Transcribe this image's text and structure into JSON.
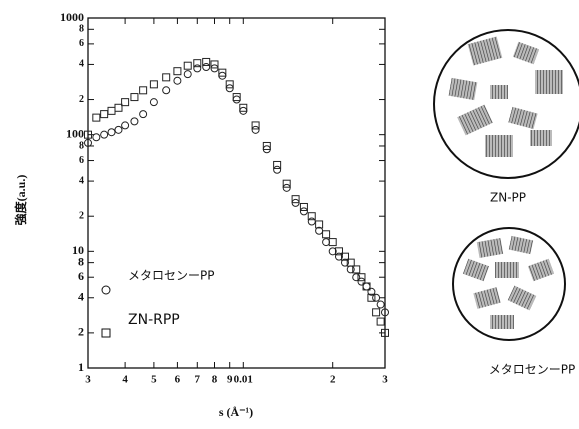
{
  "chart_data": {
    "type": "scatter",
    "xlabel": "s (Å⁻¹)",
    "ylabel": "強度(a.u.)",
    "xscale": "log",
    "yscale": "log",
    "xlim": [
      0.003,
      0.03
    ],
    "ylim": [
      1,
      1000
    ],
    "xticks": [
      {
        "value": 0.003,
        "label": "3"
      },
      {
        "value": 0.004,
        "label": "4"
      },
      {
        "value": 0.005,
        "label": "5"
      },
      {
        "value": 0.006,
        "label": "6"
      },
      {
        "value": 0.007,
        "label": "7"
      },
      {
        "value": 0.008,
        "label": "8"
      },
      {
        "value": 0.009,
        "label": "9"
      },
      0.01,
      {
        "value": 0.02,
        "label": "2"
      },
      {
        "value": 0.03,
        "label": "3"
      }
    ],
    "yticks": [
      1,
      2,
      4,
      6,
      8,
      10,
      {
        "value": 20,
        "label": "2"
      },
      {
        "value": 40,
        "label": "4"
      },
      {
        "value": 60,
        "label": "6"
      },
      {
        "value": 80,
        "label": "8"
      },
      100,
      {
        "value": 200,
        "label": "2"
      },
      {
        "value": 400,
        "label": "4"
      },
      {
        "value": 600,
        "label": "6"
      },
      {
        "value": 800,
        "label": "8"
      },
      1000
    ],
    "series": [
      {
        "name": "メタロセンーPP",
        "marker": "circle",
        "color": "#222222",
        "x": [
          0.003,
          0.0032,
          0.0034,
          0.0036,
          0.0038,
          0.004,
          0.0043,
          0.0046,
          0.005,
          0.0055,
          0.006,
          0.0065,
          0.007,
          0.0075,
          0.008,
          0.0085,
          0.009,
          0.0095,
          0.01,
          0.011,
          0.012,
          0.013,
          0.014,
          0.015,
          0.016,
          0.017,
          0.018,
          0.019,
          0.02,
          0.021,
          0.022,
          0.023,
          0.024,
          0.025,
          0.026,
          0.027,
          0.028,
          0.029,
          0.03
        ],
        "values": [
          85,
          95,
          100,
          105,
          110,
          120,
          130,
          150,
          190,
          240,
          290,
          330,
          370,
          380,
          370,
          320,
          250,
          200,
          160,
          110,
          75,
          50,
          35,
          26,
          22,
          18,
          15,
          12,
          10,
          9,
          8,
          7,
          6,
          5.5,
          5,
          4.5,
          4,
          3.5,
          3
        ]
      },
      {
        "name": "ZN-RPP",
        "marker": "square",
        "color": "#222222",
        "x": [
          0.003,
          0.0032,
          0.0034,
          0.0036,
          0.0038,
          0.004,
          0.0043,
          0.0046,
          0.005,
          0.0055,
          0.006,
          0.0065,
          0.007,
          0.0075,
          0.008,
          0.0085,
          0.009,
          0.0095,
          0.01,
          0.011,
          0.012,
          0.013,
          0.014,
          0.015,
          0.016,
          0.017,
          0.018,
          0.019,
          0.02,
          0.021,
          0.022,
          0.023,
          0.024,
          0.025,
          0.026,
          0.027,
          0.028,
          0.029,
          0.03
        ],
        "values": [
          100,
          140,
          150,
          160,
          170,
          190,
          210,
          240,
          270,
          310,
          350,
          390,
          410,
          420,
          400,
          340,
          270,
          210,
          170,
          120,
          80,
          55,
          38,
          28,
          24,
          20,
          17,
          14,
          12,
          10,
          9,
          8,
          7,
          6,
          5,
          4,
          3,
          2.5,
          2
        ]
      }
    ]
  },
  "diagrams": [
    {
      "label": "ZN-PP"
    },
    {
      "label": "メタロセンーPP"
    }
  ]
}
